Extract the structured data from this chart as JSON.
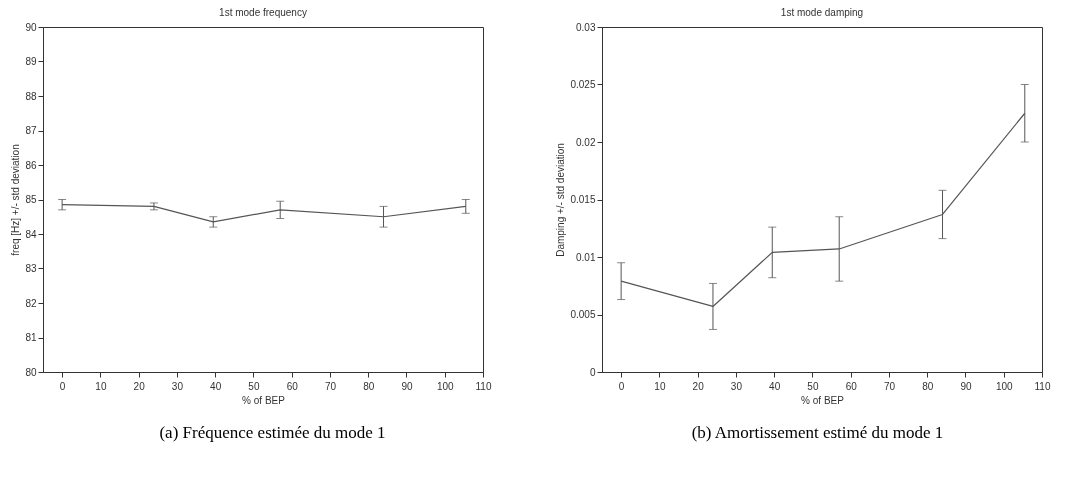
{
  "chart_data": [
    {
      "type": "line",
      "title": "1st mode frequency",
      "xlabel": "% of BEP",
      "ylabel": "freq [Hz] +/- std deviation",
      "x": [
        0,
        24,
        39.5,
        57,
        84,
        105.5
      ],
      "series": [
        {
          "color": "#555555",
          "values": [
            84.85,
            84.8,
            84.35,
            84.7,
            84.5,
            84.8
          ],
          "errors": [
            0.15,
            0.1,
            0.15,
            0.25,
            0.3,
            0.2
          ]
        }
      ],
      "xlim": [
        -5,
        110
      ],
      "xticks": [
        0,
        10,
        20,
        30,
        40,
        50,
        60,
        70,
        80,
        90,
        100,
        110
      ],
      "ylim": [
        80,
        90
      ],
      "yticks": [
        80,
        81,
        82,
        83,
        84,
        85,
        86,
        87,
        88,
        89,
        90
      ],
      "marker": "none",
      "annotations": [
        "(a) Fréquence estimée du mode 1"
      ]
    },
    {
      "type": "line",
      "title": "1st mode damping",
      "xlabel": "% of BEP",
      "ylabel": "Damping +/- std deviation",
      "x": [
        0,
        24,
        39.5,
        57,
        84,
        105.5
      ],
      "series": [
        {
          "color": "#555555",
          "values": [
            0.0079,
            0.0057,
            0.0104,
            0.0107,
            0.0137,
            0.0225
          ],
          "errors": [
            0.0016,
            0.002,
            0.0022,
            0.0028,
            0.0021,
            0.0025
          ]
        }
      ],
      "xlim": [
        -5,
        110
      ],
      "xticks": [
        0,
        10,
        20,
        30,
        40,
        50,
        60,
        70,
        80,
        90,
        100,
        110
      ],
      "ylim": [
        0,
        0.03
      ],
      "yticks": [
        0,
        0.005,
        0.01,
        0.015,
        0.02,
        0.025,
        0.03
      ],
      "marker": "none",
      "annotations": [
        "(b) Amortissement estimé du mode 1"
      ]
    }
  ]
}
